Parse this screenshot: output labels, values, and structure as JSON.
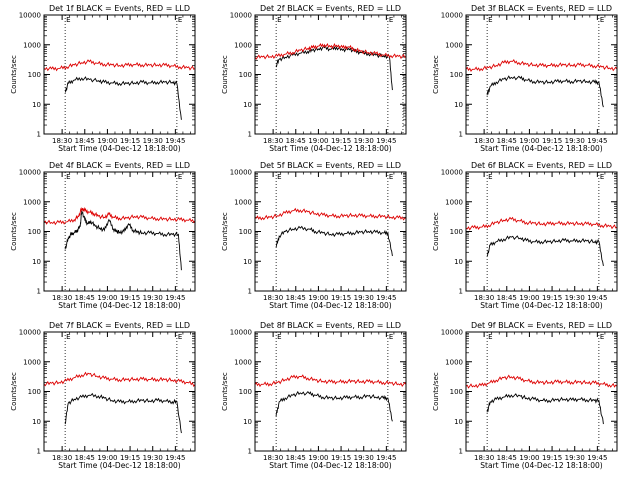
{
  "figure": {
    "xlabel": "Start Time (04-Dec-12 18:18:00)",
    "ylabel": "Counts/sec",
    "x_tick_labels": [
      "18:30",
      "18:45",
      "19:00",
      "19:15",
      "19:30",
      "19:45"
    ],
    "y_tick_labels": [
      "1",
      "10",
      "100",
      "1000",
      "10000"
    ],
    "marker_label": "E",
    "legend_text": "BLACK = Events, RED = LLD",
    "colors": {
      "events": "#000000",
      "lld": "#dd0000"
    }
  },
  "chart_data": [
    {
      "type": "line",
      "title": "Det 1f BLACK = Events, RED = LLD",
      "x_unit": "minutes after 18:18:00",
      "y_scale": "log",
      "ylim": [
        1,
        10000
      ],
      "markers": [
        {
          "x": 14,
          "label": "E"
        },
        {
          "x": 88,
          "label": "E"
        }
      ],
      "series": [
        {
          "name": "Events",
          "x": [
            14,
            16,
            20,
            25,
            30,
            36,
            40,
            45,
            50,
            55,
            60,
            65,
            70,
            75,
            80,
            85,
            88,
            91
          ],
          "y": [
            25,
            50,
            65,
            75,
            68,
            62,
            55,
            52,
            50,
            50,
            52,
            55,
            52,
            55,
            55,
            55,
            50,
            3
          ]
        },
        {
          "name": "LLD",
          "x": [
            0,
            5,
            10,
            15,
            20,
            25,
            30,
            35,
            40,
            45,
            50,
            55,
            60,
            65,
            70,
            75,
            80,
            85,
            90,
            95,
            100
          ],
          "y": [
            160,
            155,
            160,
            180,
            210,
            250,
            270,
            240,
            220,
            210,
            200,
            205,
            215,
            210,
            205,
            210,
            205,
            195,
            180,
            170,
            160
          ]
        }
      ]
    },
    {
      "type": "line",
      "title": "Det 2f BLACK = Events, RED = LLD",
      "x_unit": "minutes after 18:18:00",
      "y_scale": "log",
      "ylim": [
        1,
        10000
      ],
      "markers": [
        {
          "x": 14,
          "label": "E"
        },
        {
          "x": 88,
          "label": "E"
        },
        {
          "x": 98,
          "label": ""
        }
      ],
      "series": [
        {
          "name": "Events",
          "x": [
            14,
            16,
            20,
            25,
            30,
            35,
            38,
            42,
            46,
            50,
            54,
            58,
            62,
            66,
            70,
            75,
            80,
            85,
            89,
            91
          ],
          "y": [
            200,
            320,
            380,
            450,
            520,
            600,
            650,
            720,
            800,
            700,
            820,
            650,
            750,
            600,
            550,
            500,
            450,
            420,
            400,
            30
          ]
        },
        {
          "name": "LLD",
          "x": [
            0,
            5,
            10,
            15,
            20,
            25,
            30,
            35,
            38,
            42,
            46,
            50,
            54,
            58,
            62,
            66,
            70,
            75,
            80,
            85,
            90,
            95,
            100
          ],
          "y": [
            380,
            390,
            400,
            420,
            480,
            550,
            650,
            750,
            800,
            900,
            1000,
            850,
            950,
            800,
            850,
            700,
            600,
            550,
            500,
            450,
            430,
            410,
            400
          ]
        }
      ]
    },
    {
      "type": "line",
      "title": "Det 3f BLACK = Events, RED = LLD",
      "x_unit": "minutes after 18:18:00",
      "y_scale": "log",
      "ylim": [
        1,
        10000
      ],
      "markers": [
        {
          "x": 14,
          "label": "E"
        },
        {
          "x": 88,
          "label": "E"
        }
      ],
      "series": [
        {
          "name": "Events",
          "x": [
            14,
            16,
            20,
            25,
            30,
            36,
            40,
            45,
            50,
            55,
            60,
            65,
            70,
            75,
            80,
            85,
            88,
            91
          ],
          "y": [
            20,
            40,
            55,
            70,
            80,
            75,
            65,
            58,
            55,
            55,
            58,
            60,
            58,
            60,
            58,
            55,
            55,
            8
          ]
        },
        {
          "name": "LLD",
          "x": [
            0,
            5,
            10,
            15,
            20,
            25,
            30,
            35,
            40,
            45,
            50,
            55,
            60,
            65,
            70,
            75,
            80,
            85,
            90,
            95,
            100
          ],
          "y": [
            150,
            150,
            155,
            170,
            200,
            250,
            280,
            250,
            220,
            210,
            200,
            200,
            210,
            210,
            205,
            210,
            205,
            195,
            180,
            165,
            150
          ]
        }
      ]
    },
    {
      "type": "line",
      "title": "Det 4f BLACK = Events, RED = LLD",
      "x_unit": "minutes after 18:18:00",
      "y_scale": "log",
      "ylim": [
        1,
        10000
      ],
      "markers": [
        {
          "x": 14,
          "label": "E"
        },
        {
          "x": 88,
          "label": "E"
        }
      ],
      "series": [
        {
          "name": "Events",
          "x": [
            14,
            16,
            18,
            20,
            22,
            24,
            25,
            27,
            29,
            31,
            34,
            37,
            40,
            43,
            46,
            48,
            50,
            53,
            56,
            59,
            62,
            65,
            70,
            75,
            80,
            85,
            89,
            91
          ],
          "y": [
            25,
            60,
            80,
            90,
            110,
            150,
            500,
            250,
            180,
            220,
            150,
            130,
            110,
            250,
            120,
            100,
            95,
            100,
            180,
            110,
            95,
            90,
            90,
            85,
            80,
            80,
            80,
            5
          ]
        },
        {
          "name": "LLD",
          "x": [
            0,
            5,
            10,
            15,
            20,
            23,
            25,
            27,
            30,
            33,
            36,
            40,
            43,
            46,
            50,
            55,
            60,
            65,
            70,
            75,
            80,
            85,
            90,
            95,
            100
          ],
          "y": [
            210,
            200,
            200,
            210,
            250,
            320,
            600,
            500,
            450,
            400,
            330,
            300,
            380,
            300,
            280,
            280,
            320,
            300,
            280,
            270,
            260,
            260,
            250,
            240,
            230
          ]
        }
      ]
    },
    {
      "type": "line",
      "title": "Det 5f BLACK = Events, RED = LLD",
      "x_unit": "minutes after 18:18:00",
      "y_scale": "log",
      "ylim": [
        1,
        10000
      ],
      "markers": [
        {
          "x": 14,
          "label": "E"
        },
        {
          "x": 88,
          "label": "E"
        }
      ],
      "series": [
        {
          "name": "Events",
          "x": [
            14,
            16,
            20,
            25,
            30,
            36,
            40,
            45,
            50,
            55,
            60,
            65,
            70,
            75,
            80,
            85,
            88,
            91
          ],
          "y": [
            30,
            70,
            100,
            120,
            130,
            120,
            100,
            90,
            80,
            80,
            85,
            90,
            95,
            100,
            95,
            90,
            90,
            15
          ]
        },
        {
          "name": "LLD",
          "x": [
            0,
            5,
            10,
            15,
            20,
            25,
            30,
            35,
            40,
            45,
            50,
            55,
            60,
            65,
            70,
            75,
            80,
            85,
            90,
            95,
            100
          ],
          "y": [
            280,
            290,
            300,
            340,
            420,
            500,
            520,
            460,
            400,
            360,
            340,
            330,
            340,
            350,
            340,
            330,
            330,
            320,
            300,
            290,
            280
          ]
        }
      ]
    },
    {
      "type": "line",
      "title": "Det 6f BLACK = Events, RED = LLD",
      "x_unit": "minutes after 18:18:00",
      "y_scale": "log",
      "ylim": [
        1,
        10000
      ],
      "markers": [
        {
          "x": 14,
          "label": "E"
        },
        {
          "x": 88,
          "label": "E"
        }
      ],
      "series": [
        {
          "name": "Events",
          "x": [
            14,
            16,
            20,
            25,
            30,
            36,
            40,
            45,
            50,
            55,
            60,
            65,
            70,
            75,
            80,
            85,
            88,
            91
          ],
          "y": [
            15,
            35,
            45,
            55,
            65,
            60,
            50,
            45,
            45,
            45,
            48,
            50,
            48,
            50,
            48,
            45,
            45,
            7
          ]
        },
        {
          "name": "LLD",
          "x": [
            0,
            5,
            10,
            15,
            20,
            25,
            30,
            35,
            40,
            45,
            50,
            55,
            60,
            65,
            70,
            75,
            80,
            85,
            90,
            95,
            100
          ],
          "y": [
            130,
            135,
            140,
            160,
            200,
            240,
            260,
            230,
            200,
            190,
            180,
            180,
            190,
            190,
            185,
            185,
            180,
            175,
            160,
            150,
            140
          ]
        }
      ]
    },
    {
      "type": "line",
      "title": "Det 7f BLACK = Events, RED = LLD",
      "x_unit": "minutes after 18:18:00",
      "y_scale": "log",
      "ylim": [
        1,
        10000
      ],
      "markers": [
        {
          "x": 14,
          "label": "E"
        },
        {
          "x": 88,
          "label": "E"
        }
      ],
      "series": [
        {
          "name": "Events",
          "x": [
            14,
            16,
            20,
            25,
            30,
            36,
            40,
            45,
            50,
            55,
            60,
            65,
            70,
            75,
            80,
            85,
            88,
            91
          ],
          "y": [
            8,
            40,
            55,
            65,
            75,
            70,
            60,
            50,
            45,
            45,
            48,
            50,
            48,
            50,
            48,
            45,
            45,
            4
          ]
        },
        {
          "name": "LLD",
          "x": [
            0,
            5,
            10,
            15,
            20,
            25,
            30,
            35,
            40,
            45,
            50,
            55,
            60,
            65,
            70,
            75,
            80,
            85,
            90,
            95,
            100
          ],
          "y": [
            180,
            190,
            200,
            230,
            290,
            360,
            390,
            330,
            280,
            260,
            250,
            250,
            260,
            260,
            255,
            255,
            250,
            240,
            220,
            200,
            170
          ]
        }
      ]
    },
    {
      "type": "line",
      "title": "Det 8f BLACK = Events, RED = LLD",
      "x_unit": "minutes after 18:18:00",
      "y_scale": "log",
      "ylim": [
        1,
        10000
      ],
      "markers": [
        {
          "x": 14,
          "label": "E"
        },
        {
          "x": 88,
          "label": "E"
        }
      ],
      "series": [
        {
          "name": "Events",
          "x": [
            14,
            16,
            20,
            25,
            30,
            36,
            40,
            45,
            50,
            55,
            60,
            65,
            70,
            75,
            80,
            85,
            88,
            91
          ],
          "y": [
            15,
            45,
            60,
            75,
            90,
            85,
            75,
            65,
            60,
            60,
            62,
            65,
            65,
            70,
            65,
            60,
            60,
            10
          ]
        },
        {
          "name": "LLD",
          "x": [
            0,
            5,
            10,
            15,
            20,
            25,
            30,
            35,
            40,
            45,
            50,
            55,
            60,
            65,
            70,
            75,
            80,
            85,
            90,
            95,
            100
          ],
          "y": [
            170,
            175,
            180,
            200,
            250,
            300,
            320,
            280,
            240,
            220,
            210,
            210,
            220,
            220,
            215,
            215,
            210,
            200,
            190,
            180,
            170
          ]
        }
      ]
    },
    {
      "type": "line",
      "title": "Det 9f BLACK = Events, RED = LLD",
      "x_unit": "minutes after 18:18:00",
      "y_scale": "log",
      "ylim": [
        1,
        10000
      ],
      "markers": [
        {
          "x": 14,
          "label": "E"
        },
        {
          "x": 88,
          "label": "E"
        }
      ],
      "series": [
        {
          "name": "Events",
          "x": [
            14,
            16,
            20,
            25,
            30,
            36,
            40,
            45,
            50,
            55,
            60,
            65,
            70,
            75,
            80,
            85,
            88,
            91
          ],
          "y": [
            20,
            45,
            55,
            65,
            75,
            70,
            60,
            55,
            50,
            50,
            52,
            55,
            52,
            55,
            52,
            50,
            50,
            8
          ]
        },
        {
          "name": "LLD",
          "x": [
            0,
            5,
            10,
            15,
            20,
            25,
            30,
            35,
            40,
            45,
            50,
            55,
            60,
            65,
            70,
            75,
            80,
            85,
            90,
            95,
            100
          ],
          "y": [
            150,
            155,
            160,
            190,
            240,
            290,
            310,
            270,
            230,
            210,
            200,
            200,
            210,
            210,
            205,
            205,
            200,
            195,
            180,
            165,
            150
          ]
        }
      ]
    }
  ]
}
